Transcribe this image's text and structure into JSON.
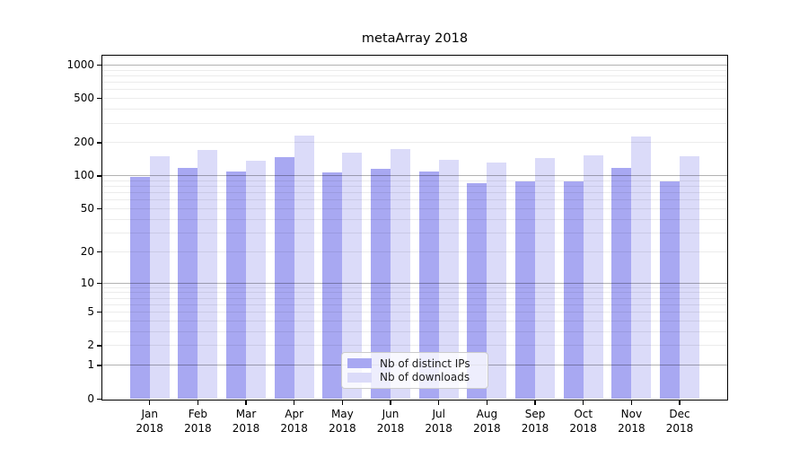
{
  "title": "metaArray 2018",
  "chart_data": {
    "type": "bar",
    "title": "metaArray 2018",
    "xlabel": "",
    "ylabel": "",
    "y_scale": "symlog",
    "grid": true,
    "legend_position": "lower center",
    "categories": [
      "Jan 2018",
      "Feb 2018",
      "Mar 2018",
      "Apr 2018",
      "May 2018",
      "Jun 2018",
      "Jul 2018",
      "Aug 2018",
      "Sep 2018",
      "Oct 2018",
      "Nov 2018",
      "Dec 2018"
    ],
    "series": [
      {
        "name": "Nb of distinct IPs",
        "color": "#a8a8f2",
        "values": [
          96,
          117,
          108,
          147,
          107,
          114,
          108,
          85,
          88,
          88,
          117,
          88
        ]
      },
      {
        "name": "Nb of downloads",
        "color": "#dbdbf9",
        "values": [
          150,
          170,
          135,
          230,
          160,
          172,
          139,
          131,
          144,
          153,
          223,
          150
        ]
      }
    ],
    "yticks": [
      0,
      1,
      2,
      5,
      10,
      20,
      50,
      100,
      200,
      500,
      1000
    ],
    "ylim": [
      0,
      1200
    ]
  }
}
